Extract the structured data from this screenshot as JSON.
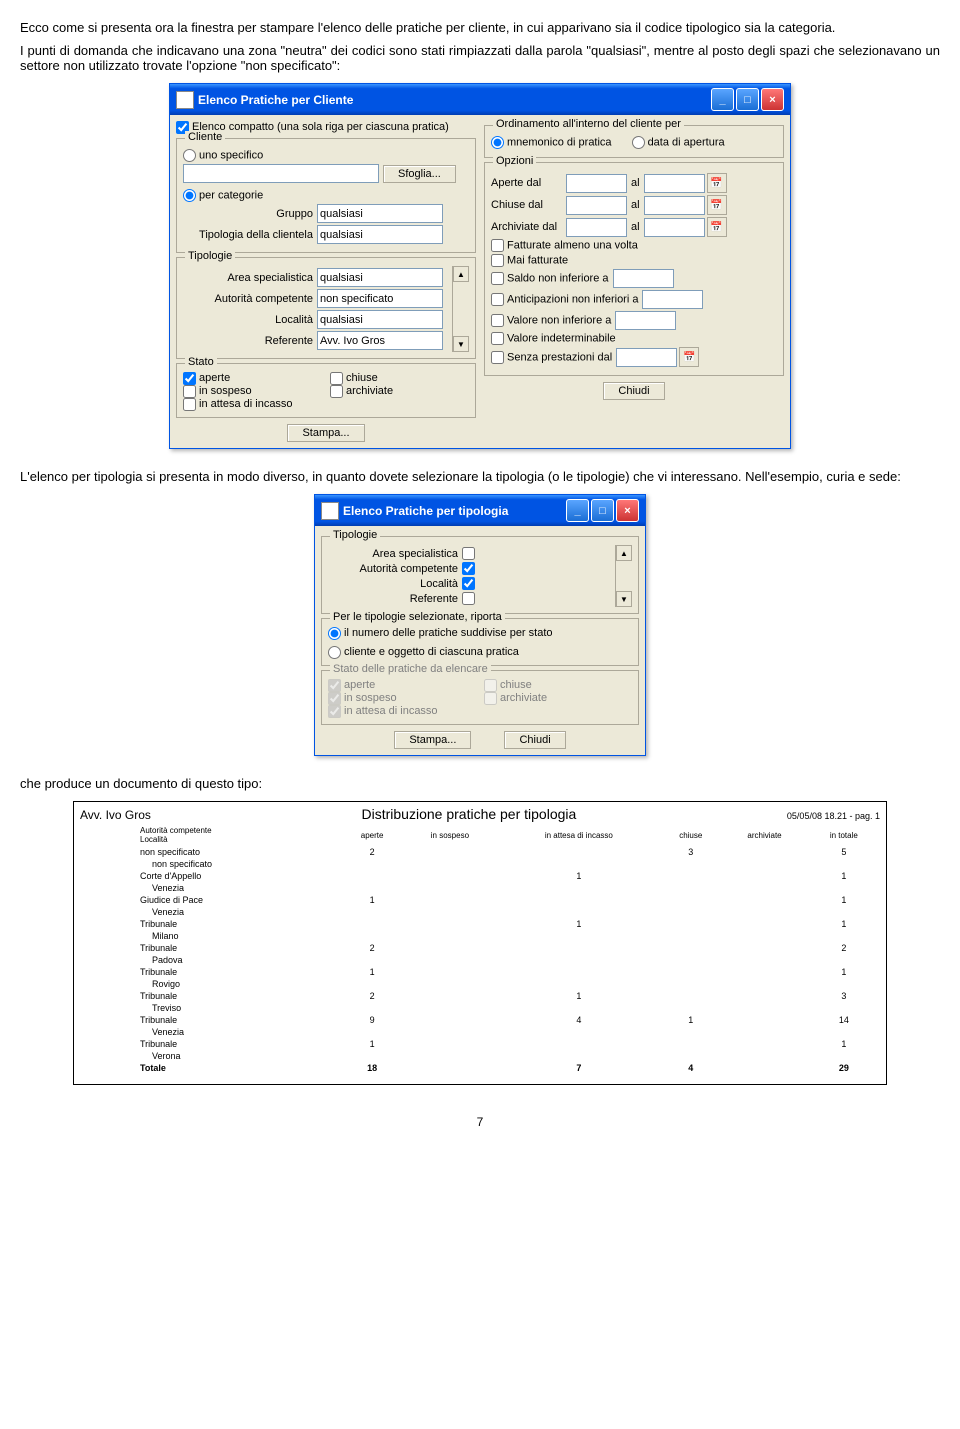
{
  "intro1": "Ecco come si presenta ora la finestra per stampare l'elenco delle pratiche per cliente, in cui apparivano sia il codice tipologico sia la categoria.",
  "intro2": "I punti di domanda che indicavano una zona \"neutra\" dei codici sono stati rimpiazzati dalla parola \"qualsiasi\", mentre al posto degli spazi che selezionavano un settore non utilizzato trovate l'opzione \"non specificato\":",
  "dlg1": {
    "title": "Elenco Pratiche per Cliente",
    "compatto": "Elenco compatto (una sola riga per ciascuna pratica)",
    "cliente_legend": "Cliente",
    "uno_specifico": "uno specifico",
    "sfoglia": "Sfoglia...",
    "per_categorie": "per categorie",
    "gruppo_label": "Gruppo",
    "gruppo_val": "qualsiasi",
    "tipclient_label": "Tipologia della clientela",
    "tipclient_val": "qualsiasi",
    "tipologie_legend": "Tipologie",
    "area_label": "Area specialistica",
    "area_val": "qualsiasi",
    "autorita_label": "Autorità competente",
    "autorita_val": "non specificato",
    "localita_label": "Località",
    "localita_val": "qualsiasi",
    "referente_label": "Referente",
    "referente_val": "Avv. Ivo Gros",
    "stato_legend": "Stato",
    "aperte": "aperte",
    "in_sospeso": "in sospeso",
    "in_attesa": "in attesa di incasso",
    "chiuse": "chiuse",
    "archiviate": "archiviate",
    "ordinamento_legend": "Ordinamento all'interno del cliente per",
    "mnemonico": "mnemonico di pratica",
    "data_apertura": "data di apertura",
    "opzioni_legend": "Opzioni",
    "aperte_dal": "Aperte dal",
    "chiuse_dal": "Chiuse dal",
    "archiviate_dal": "Archiviate dal",
    "al": "al",
    "fatturate": "Fatturate almeno una volta",
    "mai_fatturate": "Mai fatturate",
    "saldo": "Saldo non inferiore a",
    "anticipazioni": "Anticipazioni non inferiori a",
    "valore_noninf": "Valore non inferiore a",
    "valore_indet": "Valore indeterminabile",
    "senza_prest": "Senza prestazioni dal",
    "stampa": "Stampa...",
    "chiudi": "Chiudi"
  },
  "mid1": "L'elenco per tipologia si presenta in modo diverso, in quanto dovete selezionare la tipologia (o le tipologie) che vi interessano. Nell'esempio, curia e sede:",
  "dlg2": {
    "title": "Elenco Pratiche per tipologia",
    "tipologie_legend": "Tipologie",
    "area": "Area specialistica",
    "autorita": "Autorità competente",
    "localita": "Località",
    "referente": "Referente",
    "per_legend": "Per le tipologie selezionate, riporta",
    "numero": "il numero delle pratiche suddivise per stato",
    "cliente_oggetto": "cliente e oggetto di ciascuna pratica",
    "stato_legend": "Stato delle pratiche da elencare",
    "aperte": "aperte",
    "in_sospeso": "in sospeso",
    "in_attesa": "in attesa di incasso",
    "chiuse": "chiuse",
    "archiviate": "archiviate",
    "stampa": "Stampa...",
    "chiudi": "Chiudi"
  },
  "mid2": "che produce un documento di questo tipo:",
  "report": {
    "owner": "Avv. Ivo Gros",
    "title": "Distribuzione pratiche per tipologia",
    "timestamp": "05/05/08 18.21 - pag. 1",
    "cols": [
      "Autorità competente\nLocalità",
      "aperte",
      "in sospeso",
      "in attesa di incasso",
      "chiuse",
      "archiviate",
      "in totale"
    ],
    "rows": [
      {
        "l": "non specificato",
        "sub": "non specificato",
        "c": [
          "2",
          "",
          "",
          "3",
          "",
          "5"
        ]
      },
      {
        "l": "Corte d'Appello",
        "sub": "Venezia",
        "c": [
          "",
          "",
          "1",
          "",
          "",
          "1"
        ]
      },
      {
        "l": "Giudice di Pace",
        "sub": "Venezia",
        "c": [
          "1",
          "",
          "",
          "",
          "",
          "1"
        ]
      },
      {
        "l": "Tribunale",
        "sub": "Milano",
        "c": [
          "",
          "",
          "1",
          "",
          "",
          "1"
        ]
      },
      {
        "l": "Tribunale",
        "sub": "Padova",
        "c": [
          "2",
          "",
          "",
          "",
          "",
          "2"
        ]
      },
      {
        "l": "Tribunale",
        "sub": "Rovigo",
        "c": [
          "1",
          "",
          "",
          "",
          "",
          "1"
        ]
      },
      {
        "l": "Tribunale",
        "sub": "Treviso",
        "c": [
          "2",
          "",
          "1",
          "",
          "",
          "3"
        ]
      },
      {
        "l": "Tribunale",
        "sub": "Venezia",
        "c": [
          "9",
          "",
          "4",
          "1",
          "",
          "14"
        ]
      },
      {
        "l": "Tribunale",
        "sub": "Verona",
        "c": [
          "1",
          "",
          "",
          "",
          "",
          "1"
        ]
      }
    ],
    "total": {
      "l": "Totale",
      "c": [
        "18",
        "",
        "7",
        "4",
        "",
        "29"
      ]
    }
  },
  "pagenum": "7"
}
